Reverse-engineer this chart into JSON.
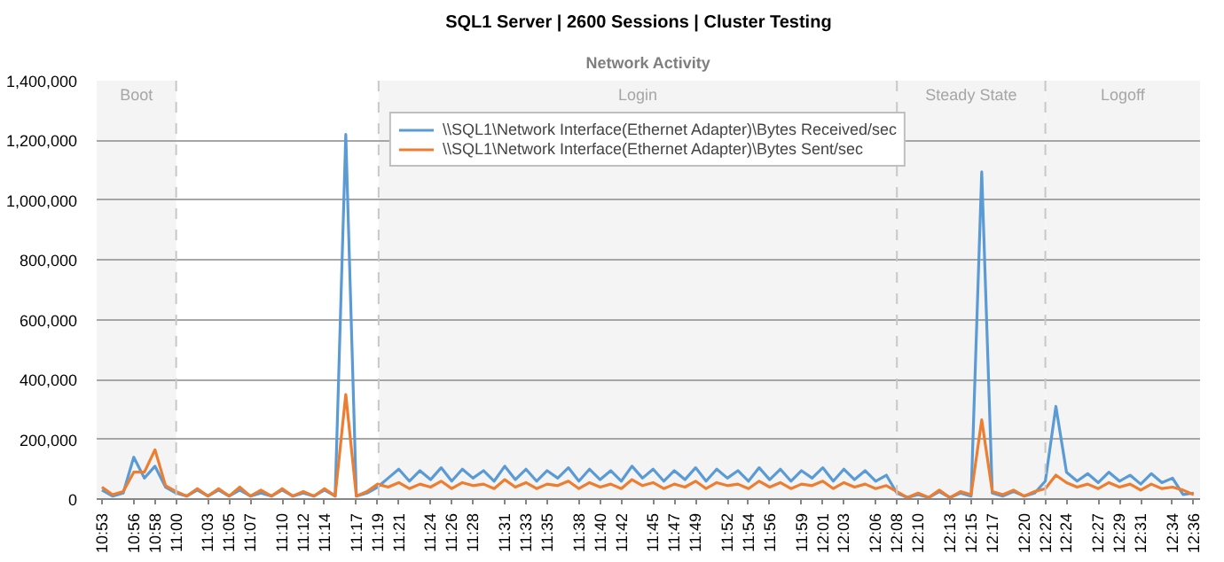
{
  "chart_data": {
    "type": "line",
    "title": "SQL1 Server  |  2600 Sessions  |  Cluster Testing",
    "subtitle": "Network Activity",
    "x": [
      10.8833,
      10.9,
      10.9167,
      10.9333,
      10.95,
      10.9667,
      10.9833,
      11,
      11.0167,
      11.0333,
      11.05,
      11.0667,
      11.0833,
      11.1,
      11.1167,
      11.1333,
      11.15,
      11.1667,
      11.1833,
      11.2,
      11.2167,
      11.2333,
      11.25,
      11.2667,
      11.2833,
      11.3,
      11.3167,
      11.3333,
      11.35,
      11.3667,
      11.3833,
      11.4,
      11.4167,
      11.4333,
      11.45,
      11.4667,
      11.4833,
      11.5,
      11.5167,
      11.5333,
      11.55,
      11.5667,
      11.5833,
      11.6,
      11.6167,
      11.6333,
      11.65,
      11.6667,
      11.6833,
      11.7,
      11.7167,
      11.7333,
      11.75,
      11.7667,
      11.7833,
      11.8,
      11.8167,
      11.8333,
      11.85,
      11.8667,
      11.8833,
      11.9,
      11.9167,
      11.9333,
      11.95,
      11.9667,
      11.9833,
      12,
      12.0167,
      12.0333,
      12.05,
      12.0667,
      12.0833,
      12.1,
      12.1167,
      12.1333,
      12.15,
      12.1667,
      12.1833,
      12.2,
      12.2167,
      12.2333,
      12.25,
      12.2667,
      12.2833,
      12.3,
      12.3167,
      12.3333,
      12.35,
      12.3667,
      12.3833,
      12.4,
      12.4167,
      12.4333,
      12.45,
      12.4667,
      12.4833,
      12.5,
      12.5167,
      12.5333,
      12.55,
      12.5667,
      12.5833,
      12.6
    ],
    "series": [
      {
        "name": "\\\\SQL1\\Network Interface(Ethernet Adapter)\\Bytes Received/sec",
        "color": "#5b9bd5",
        "values": [
          30000,
          10000,
          20000,
          140000,
          70000,
          110000,
          40000,
          20000,
          10000,
          30000,
          10000,
          30000,
          10000,
          30000,
          10000,
          20000,
          10000,
          30000,
          10000,
          20000,
          10000,
          30000,
          10000,
          1220000,
          10000,
          20000,
          40000,
          70000,
          100000,
          60000,
          95000,
          65000,
          105000,
          60000,
          100000,
          70000,
          95000,
          60000,
          110000,
          65000,
          100000,
          60000,
          95000,
          70000,
          105000,
          60000,
          100000,
          65000,
          95000,
          60000,
          110000,
          70000,
          100000,
          60000,
          95000,
          65000,
          105000,
          60000,
          100000,
          70000,
          95000,
          60000,
          105000,
          65000,
          100000,
          60000,
          95000,
          70000,
          105000,
          60000,
          100000,
          65000,
          95000,
          60000,
          80000,
          20000,
          5000,
          15000,
          5000,
          25000,
          5000,
          20000,
          10000,
          1095000,
          20000,
          10000,
          25000,
          10000,
          20000,
          60000,
          310000,
          90000,
          60000,
          85000,
          55000,
          90000,
          60000,
          80000,
          50000,
          85000,
          55000,
          70000,
          15000,
          20000
        ]
      },
      {
        "name": "\\\\SQL1\\Network Interface(Ethernet Adapter)\\Bytes Sent/sec",
        "color": "#ed7d31",
        "values": [
          40000,
          15000,
          25000,
          90000,
          90000,
          165000,
          45000,
          25000,
          10000,
          35000,
          10000,
          35000,
          10000,
          40000,
          10000,
          30000,
          10000,
          35000,
          10000,
          25000,
          10000,
          35000,
          10000,
          350000,
          10000,
          25000,
          50000,
          40000,
          55000,
          35000,
          50000,
          40000,
          60000,
          35000,
          55000,
          45000,
          50000,
          35000,
          65000,
          40000,
          55000,
          35000,
          50000,
          45000,
          60000,
          35000,
          55000,
          40000,
          50000,
          35000,
          65000,
          45000,
          55000,
          35000,
          50000,
          40000,
          60000,
          35000,
          55000,
          45000,
          50000,
          35000,
          60000,
          40000,
          55000,
          35000,
          50000,
          45000,
          60000,
          35000,
          55000,
          40000,
          50000,
          35000,
          45000,
          25000,
          5000,
          20000,
          5000,
          30000,
          5000,
          25000,
          15000,
          265000,
          25000,
          15000,
          30000,
          10000,
          25000,
          35000,
          80000,
          55000,
          40000,
          50000,
          35000,
          55000,
          40000,
          50000,
          30000,
          50000,
          35000,
          40000,
          30000,
          15000
        ]
      }
    ],
    "xlim": [
      10.875,
      12.61
    ],
    "xticks": [
      {
        "value": 10.8833,
        "label": "10:53"
      },
      {
        "value": 10.9333,
        "label": "10:56"
      },
      {
        "value": 10.9667,
        "label": "10:58"
      },
      {
        "value": 11,
        "label": "11:00"
      },
      {
        "value": 11.05,
        "label": "11:03"
      },
      {
        "value": 11.0833,
        "label": "11:05"
      },
      {
        "value": 11.1167,
        "label": "11:07"
      },
      {
        "value": 11.1667,
        "label": "11:10"
      },
      {
        "value": 11.2,
        "label": "11:12"
      },
      {
        "value": 11.2333,
        "label": "11:14"
      },
      {
        "value": 11.2833,
        "label": "11:17"
      },
      {
        "value": 11.3167,
        "label": "11:19"
      },
      {
        "value": 11.35,
        "label": "11:21"
      },
      {
        "value": 11.4,
        "label": "11:24"
      },
      {
        "value": 11.4333,
        "label": "11:26"
      },
      {
        "value": 11.4667,
        "label": "11:28"
      },
      {
        "value": 11.5167,
        "label": "11:31"
      },
      {
        "value": 11.55,
        "label": "11:33"
      },
      {
        "value": 11.5833,
        "label": "11:35"
      },
      {
        "value": 11.6333,
        "label": "11:38"
      },
      {
        "value": 11.6667,
        "label": "11:40"
      },
      {
        "value": 11.7,
        "label": "11:42"
      },
      {
        "value": 11.75,
        "label": "11:45"
      },
      {
        "value": 11.7833,
        "label": "11:47"
      },
      {
        "value": 11.8167,
        "label": "11:49"
      },
      {
        "value": 11.8667,
        "label": "11:52"
      },
      {
        "value": 11.9,
        "label": "11:54"
      },
      {
        "value": 11.9333,
        "label": "11:56"
      },
      {
        "value": 11.9833,
        "label": "11:59"
      },
      {
        "value": 12.0167,
        "label": "12:01"
      },
      {
        "value": 12.05,
        "label": "12:03"
      },
      {
        "value": 12.1,
        "label": "12:06"
      },
      {
        "value": 12.1333,
        "label": "12:08"
      },
      {
        "value": 12.1667,
        "label": "12:10"
      },
      {
        "value": 12.2167,
        "label": "12:13"
      },
      {
        "value": 12.25,
        "label": "12:15"
      },
      {
        "value": 12.2833,
        "label": "12:17"
      },
      {
        "value": 12.3333,
        "label": "12:20"
      },
      {
        "value": 12.3667,
        "label": "12:22"
      },
      {
        "value": 12.4,
        "label": "12:24"
      },
      {
        "value": 12.45,
        "label": "12:27"
      },
      {
        "value": 12.4833,
        "label": "12:29"
      },
      {
        "value": 12.5167,
        "label": "12:31"
      },
      {
        "value": 12.5667,
        "label": "12:34"
      },
      {
        "value": 12.6,
        "label": "12:36"
      }
    ],
    "ylim": [
      0,
      1400000
    ],
    "yticks": [
      {
        "value": 0,
        "label": "0"
      },
      {
        "value": 200000,
        "label": "200,000"
      },
      {
        "value": 400000,
        "label": "400,000"
      },
      {
        "value": 600000,
        "label": "600,000"
      },
      {
        "value": 800000,
        "label": "800,000"
      },
      {
        "value": 1000000,
        "label": "1,000,000"
      },
      {
        "value": 1200000,
        "label": "1,200,000"
      },
      {
        "value": 1400000,
        "label": "1,400,000"
      }
    ],
    "grid": "y",
    "legend": "top",
    "line_style": "solid",
    "ref_lines": [
      {
        "axis": "x",
        "value": 11,
        "color": "#c8c8c8",
        "line_style": "dashed"
      },
      {
        "axis": "x",
        "value": 11.3183,
        "color": "#c8c8c8",
        "line_style": "dashed"
      },
      {
        "axis": "x",
        "value": 12.1333,
        "color": "#c8c8c8",
        "line_style": "dashed"
      },
      {
        "axis": "x",
        "value": 12.3667,
        "color": "#c8c8c8",
        "line_style": "dashed"
      }
    ],
    "bands": [
      {
        "axis": "x",
        "from": 10.875,
        "to": 11,
        "label": "Boot",
        "color": "#f4f4f4"
      },
      {
        "axis": "x",
        "from": 11.3183,
        "to": 12.1333,
        "label": "Login",
        "color": "#f4f4f4"
      },
      {
        "axis": "x",
        "from": 12.1333,
        "to": 12.3667,
        "label": "Steady State",
        "color": "#f4f4f4"
      },
      {
        "axis": "x",
        "from": 12.3667,
        "to": 12.61,
        "label": "Logoff",
        "color": "#f4f4f4"
      }
    ]
  }
}
